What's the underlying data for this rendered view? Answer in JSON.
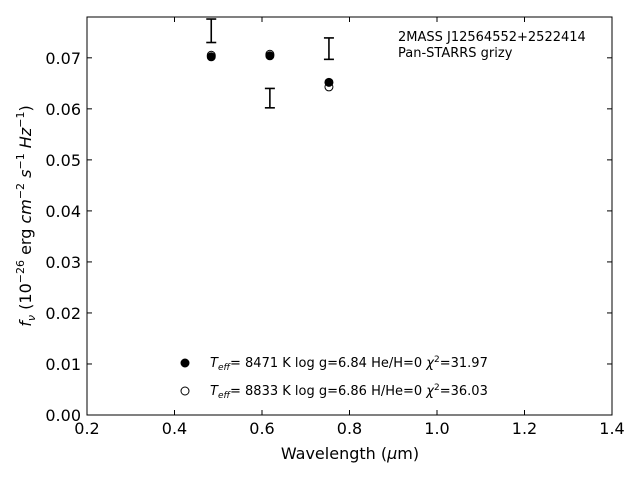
{
  "chart_data": {
    "type": "scatter",
    "title": "",
    "xlabel": "Wavelength (μm)",
    "ylabel": "f_ν (10^−26 erg cm^−2 s^−1 Hz^−1)",
    "xlim": [
      0.2,
      1.4
    ],
    "ylim": [
      0.0,
      0.078
    ],
    "x_ticks": [
      0.2,
      0.4,
      0.6,
      0.8,
      1.0,
      1.2,
      1.4
    ],
    "x_tick_labels": [
      "0.2",
      "0.4",
      "0.6",
      "0.8",
      "1.0",
      "1.2",
      "1.4"
    ],
    "y_ticks": [
      0.0,
      0.01,
      0.02,
      0.03,
      0.04,
      0.05,
      0.06,
      0.07
    ],
    "y_tick_labels": [
      "0.00",
      "0.01",
      "0.02",
      "0.03",
      "0.04",
      "0.05",
      "0.06",
      "0.07"
    ],
    "grid": false,
    "legend_position": "lower-center",
    "annotations": [
      "2MASS J12564552+2522414",
      "Pan-STARRS grizy"
    ],
    "observed": {
      "x": [
        0.484,
        0.618,
        0.753
      ],
      "y": [
        0.0753,
        0.0621,
        0.0718
      ],
      "yerr": [
        0.0023,
        0.0019,
        0.0021
      ]
    },
    "series": [
      {
        "name": "T_eff= 8471 K  log g=6.84  He/H=0  χ²=31.97",
        "marker": "filled-circle",
        "x": [
          0.484,
          0.618,
          0.753
        ],
        "y": [
          0.0702,
          0.0704,
          0.0652
        ]
      },
      {
        "name": "T_eff= 8833 K  log g=6.86  H/He=0  χ²=36.03",
        "marker": "open-circle",
        "x": [
          0.484,
          0.618,
          0.753
        ],
        "y": [
          0.0705,
          0.0707,
          0.0643
        ]
      }
    ],
    "colors": {
      "marker": "#000000",
      "axis": "#000000"
    }
  }
}
